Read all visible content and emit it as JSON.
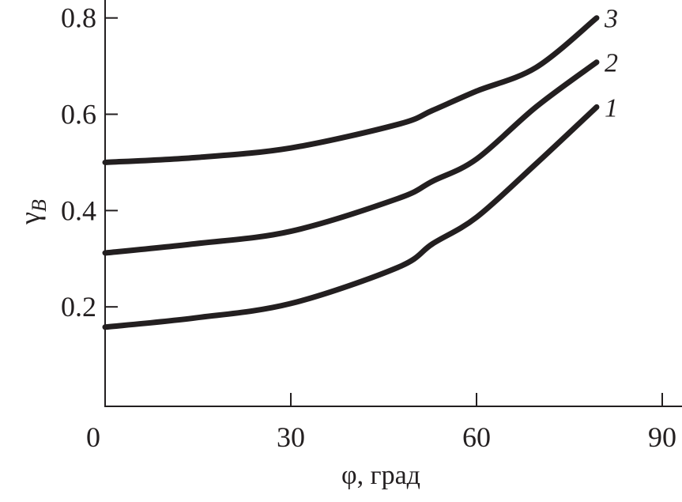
{
  "chart_data": {
    "type": "line",
    "title": "",
    "xlabel": "φ, град",
    "ylabel": {
      "main": "γ",
      "sub": "B"
    },
    "xlim": [
      0,
      90
    ],
    "ylim": [
      0,
      0.8
    ],
    "xticks": [
      {
        "value": 0,
        "label": "0"
      },
      {
        "value": 30,
        "label": "30"
      },
      {
        "value": 60,
        "label": "60"
      },
      {
        "value": 90,
        "label": "90"
      }
    ],
    "yticks": [
      {
        "value": 0.2,
        "label": "0.2"
      },
      {
        "value": 0.4,
        "label": "0.4"
      },
      {
        "value": 0.6,
        "label": "0.6"
      },
      {
        "value": 0.8,
        "label": "0.8"
      }
    ],
    "grid": false,
    "line_color": "#231f20",
    "series": [
      {
        "name": "1",
        "x": [
          0,
          14.5,
          30,
          47.3,
          52.9,
          60,
          69.6,
          79.4
        ],
        "y": [
          0.158,
          0.177,
          0.207,
          0.282,
          0.331,
          0.386,
          0.497,
          0.615
        ]
      },
      {
        "name": "2",
        "x": [
          0,
          14.5,
          30,
          47.3,
          52.9,
          60,
          69.6,
          79.4
        ],
        "y": [
          0.312,
          0.331,
          0.357,
          0.425,
          0.461,
          0.507,
          0.615,
          0.708
        ]
      },
      {
        "name": "3",
        "x": [
          0,
          14.5,
          30,
          47.3,
          52.9,
          60,
          69.6,
          79.4
        ],
        "y": [
          0.5,
          0.51,
          0.53,
          0.579,
          0.608,
          0.648,
          0.697,
          0.8
        ]
      }
    ]
  }
}
